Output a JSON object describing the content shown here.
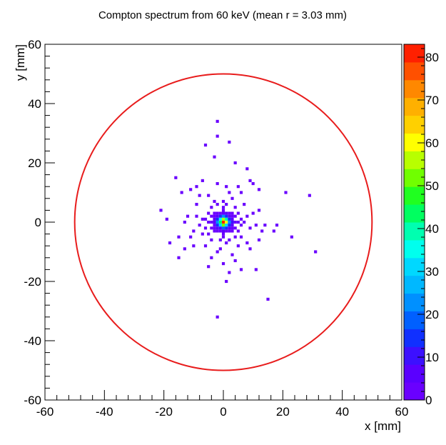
{
  "chart_data": {
    "type": "heatmap",
    "title": "Compton spectrum from 60 keV (mean r = 3.03 mm)",
    "xlabel": "x [mm]",
    "ylabel": "y [mm]",
    "xlim": [
      -60,
      60
    ],
    "ylim": [
      -60,
      60
    ],
    "x_ticks": [
      "-60",
      "-40",
      "-20",
      "0",
      "20",
      "40",
      "60"
    ],
    "y_ticks": [
      "-60",
      "-40",
      "-20",
      "0",
      "20",
      "40",
      "60"
    ],
    "colorbar": {
      "min": 0,
      "max": 83,
      "ticks": [
        "0",
        "10",
        "20",
        "30",
        "40",
        "50",
        "60",
        "70",
        "80"
      ],
      "colors": [
        "#6a00ff",
        "#5a00ff",
        "#3c10ff",
        "#1030ff",
        "#0060ff",
        "#0090ff",
        "#00b8ff",
        "#00d8ff",
        "#00ffee",
        "#00ffb0",
        "#00ff60",
        "#20ff20",
        "#70ff00",
        "#b8ff00",
        "#ffff00",
        "#ffd000",
        "#ffb000",
        "#ff8800",
        "#ff5000",
        "#ff2000"
      ]
    },
    "circle": {
      "center": [
        0,
        0
      ],
      "radius": 50,
      "color": "#e81c1c"
    },
    "bin_size_mm": 1,
    "bins": [
      [
        0,
        0,
        83
      ],
      [
        1,
        0,
        60
      ],
      [
        -1,
        0,
        45
      ],
      [
        0,
        1,
        55
      ],
      [
        0,
        -1,
        50
      ],
      [
        1,
        1,
        38
      ],
      [
        -1,
        1,
        35
      ],
      [
        1,
        -1,
        32
      ],
      [
        -1,
        -1,
        30
      ],
      [
        2,
        0,
        24
      ],
      [
        -2,
        0,
        22
      ],
      [
        0,
        2,
        22
      ],
      [
        0,
        -2,
        20
      ],
      [
        2,
        1,
        16
      ],
      [
        -2,
        1,
        15
      ],
      [
        2,
        -1,
        14
      ],
      [
        -2,
        -1,
        13
      ],
      [
        1,
        2,
        16
      ],
      [
        -1,
        2,
        14
      ],
      [
        1,
        -2,
        13
      ],
      [
        -1,
        -2,
        12
      ],
      [
        3,
        0,
        9
      ],
      [
        -3,
        0,
        8
      ],
      [
        0,
        3,
        8
      ],
      [
        0,
        -3,
        7
      ],
      [
        2,
        2,
        8
      ],
      [
        -2,
        2,
        7
      ],
      [
        2,
        -2,
        7
      ],
      [
        -2,
        -2,
        6
      ],
      [
        3,
        1,
        5
      ],
      [
        -3,
        1,
        5
      ],
      [
        3,
        -1,
        5
      ],
      [
        -3,
        -1,
        4
      ],
      [
        1,
        3,
        5
      ],
      [
        -1,
        3,
        4
      ],
      [
        1,
        -3,
        4
      ],
      [
        -1,
        -3,
        4
      ],
      [
        4,
        0,
        3
      ],
      [
        -4,
        0,
        3
      ],
      [
        0,
        4,
        3
      ],
      [
        0,
        -4,
        3
      ],
      [
        3,
        2,
        3
      ],
      [
        -3,
        2,
        2
      ],
      [
        3,
        -2,
        2
      ],
      [
        -3,
        -2,
        2
      ],
      [
        2,
        3,
        2
      ],
      [
        -2,
        3,
        2
      ],
      [
        2,
        -3,
        2
      ],
      [
        -2,
        -3,
        2
      ],
      [
        5,
        0,
        2
      ],
      [
        -5,
        0,
        2
      ],
      [
        0,
        5,
        1
      ],
      [
        0,
        -5,
        1
      ],
      [
        4,
        2,
        1
      ],
      [
        -4,
        2,
        1
      ],
      [
        4,
        -2,
        1
      ],
      [
        -4,
        -2,
        1
      ],
      [
        3,
        3,
        1
      ],
      [
        -3,
        3,
        1
      ],
      [
        3,
        -3,
        1
      ],
      [
        -3,
        -3,
        1
      ],
      [
        6,
        1,
        1
      ],
      [
        -6,
        1,
        1
      ],
      [
        6,
        -1,
        1
      ],
      [
        -6,
        -2,
        1
      ],
      [
        5,
        3,
        1
      ],
      [
        -5,
        3,
        1
      ],
      [
        5,
        -3,
        1
      ],
      [
        -5,
        -4,
        1
      ],
      [
        1,
        6,
        1
      ],
      [
        -2,
        6,
        1
      ],
      [
        2,
        -6,
        1
      ],
      [
        -1,
        -6,
        1
      ],
      [
        7,
        0,
        1
      ],
      [
        -7,
        1,
        1
      ],
      [
        8,
        2,
        1
      ],
      [
        -8,
        -1,
        1
      ],
      [
        4,
        5,
        1
      ],
      [
        -4,
        5,
        1
      ],
      [
        4,
        -5,
        1
      ],
      [
        -4,
        -6,
        1
      ],
      [
        0,
        7,
        1
      ],
      [
        1,
        -7,
        1
      ],
      [
        -3,
        7,
        1
      ],
      [
        3,
        8,
        1
      ],
      [
        9,
        -2,
        1
      ],
      [
        -9,
        2,
        1
      ],
      [
        6,
        -5,
        1
      ],
      [
        -7,
        -4,
        1
      ],
      [
        2,
        10,
        1
      ],
      [
        -1,
        -9,
        1
      ],
      [
        10,
        3,
        1
      ],
      [
        -10,
        -3,
        1
      ],
      [
        -6,
        -8,
        1
      ],
      [
        5,
        -8,
        1
      ],
      [
        7,
        6,
        1
      ],
      [
        -5,
        9,
        1
      ],
      [
        -2,
        -10,
        1
      ],
      [
        11,
        -1,
        1
      ],
      [
        -12,
        2,
        1
      ],
      [
        8,
        -7,
        1
      ],
      [
        -9,
        6,
        1
      ],
      [
        3,
        -11,
        1
      ],
      [
        -11,
        -5,
        1
      ],
      [
        12,
        4,
        1
      ],
      [
        6,
        10,
        1
      ],
      [
        -4,
        -12,
        1
      ],
      [
        9,
        -9,
        1
      ],
      [
        -13,
        0,
        1
      ],
      [
        -8,
        9,
        1
      ],
      [
        1,
        12,
        1
      ],
      [
        4,
        -13,
        1
      ],
      [
        -2,
        13,
        1
      ],
      [
        13,
        -3,
        1
      ],
      [
        -10,
        -8,
        1
      ],
      [
        0,
        -14,
        1
      ],
      [
        12,
        -6,
        1
      ],
      [
        -15,
        -5,
        1
      ],
      [
        -14,
        10,
        1
      ],
      [
        -16,
        15,
        1
      ],
      [
        -21,
        4,
        1
      ],
      [
        -19,
        1,
        1
      ],
      [
        -18,
        -7,
        1
      ],
      [
        -15,
        -12,
        1
      ],
      [
        14,
        -1,
        1
      ],
      [
        17,
        -3,
        1
      ],
      [
        18,
        -1,
        1
      ],
      [
        21,
        10,
        1
      ],
      [
        23,
        -5,
        1
      ],
      [
        29,
        9,
        1
      ],
      [
        31,
        -10,
        1
      ],
      [
        10,
        13,
        1
      ],
      [
        -7,
        14,
        1
      ],
      [
        -3,
        22,
        1
      ],
      [
        4,
        20,
        1
      ],
      [
        -6,
        26,
        1
      ],
      [
        -2,
        29,
        1
      ],
      [
        2,
        27,
        1
      ],
      [
        -2,
        34,
        1
      ],
      [
        -5,
        -15,
        1
      ],
      [
        2,
        -17,
        1
      ],
      [
        6,
        -16,
        1
      ],
      [
        11,
        -16,
        1
      ],
      [
        1,
        -20,
        1
      ],
      [
        15,
        -26,
        1
      ],
      [
        -2,
        -32,
        1
      ],
      [
        8,
        18,
        1
      ],
      [
        12,
        11,
        1
      ],
      [
        -9,
        12,
        1
      ],
      [
        -13,
        -9,
        1
      ],
      [
        9,
        14,
        1
      ],
      [
        -11,
        11,
        1
      ],
      [
        5,
        12,
        1
      ]
    ]
  }
}
